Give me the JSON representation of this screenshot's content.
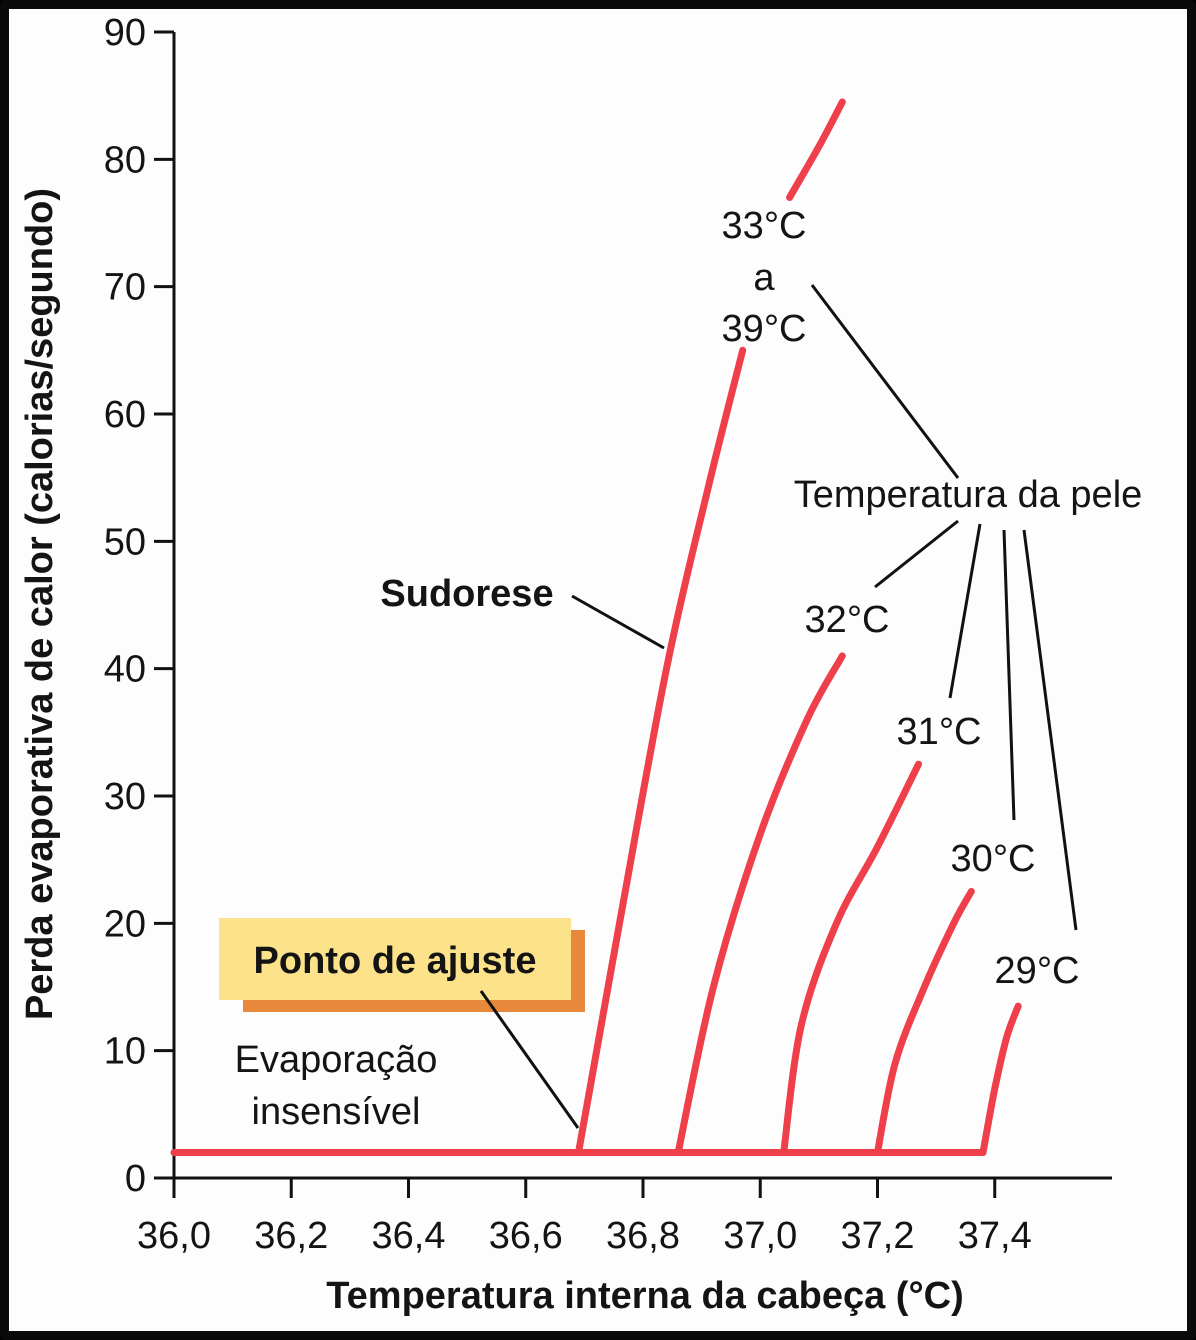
{
  "chart_data": {
    "type": "line",
    "xlabel": "Temperatura interna da cabeça (°C)",
    "ylabel": "Perda evaporativa de calor (calorias/segundo)",
    "xlim": [
      36.0,
      37.6
    ],
    "ylim": [
      0,
      90
    ],
    "x_ticks": [
      36.0,
      36.2,
      36.4,
      36.6,
      36.8,
      37.0,
      37.2,
      37.4
    ],
    "x_tick_labels": [
      "36,0",
      "36,2",
      "36,4",
      "36,6",
      "36,8",
      "37,0",
      "37,2",
      "37,4"
    ],
    "y_ticks": [
      0,
      10,
      20,
      30,
      40,
      50,
      60,
      70,
      80,
      90
    ],
    "y_tick_labels": [
      "0",
      "10",
      "20",
      "30",
      "40",
      "50",
      "60",
      "70",
      "80",
      "90"
    ],
    "grid": false,
    "legend": "none",
    "baseline": {
      "x": [
        36.0,
        37.38
      ],
      "y": [
        2,
        2
      ]
    },
    "series": [
      {
        "name": "33°C a 39°C",
        "x": [
          36.69,
          36.76,
          36.84,
          36.91,
          36.97
        ],
        "y": [
          2,
          20,
          40,
          54,
          65
        ]
      },
      {
        "name": "33°C a 39°C (cont.)",
        "x": [
          37.05,
          37.1,
          37.14
        ],
        "y": [
          77,
          81,
          84.5
        ]
      },
      {
        "name": "32°C",
        "x": [
          36.86,
          36.92,
          37.0,
          37.08,
          37.14
        ],
        "y": [
          2,
          15,
          27,
          36,
          41
        ]
      },
      {
        "name": "31°C",
        "x": [
          37.04,
          37.07,
          37.13,
          37.2,
          37.27
        ],
        "y": [
          2,
          12,
          20,
          26,
          32.5
        ]
      },
      {
        "name": "30°C",
        "x": [
          37.2,
          37.23,
          37.28,
          37.33,
          37.36
        ],
        "y": [
          2,
          9,
          15,
          20,
          22.5
        ]
      },
      {
        "name": "29°C",
        "x": [
          37.38,
          37.4,
          37.42,
          37.44
        ],
        "y": [
          2,
          7,
          11,
          13.5
        ]
      }
    ],
    "annotations": {
      "set_point": "Ponto de ajuste",
      "insensible_line1": "Evaporação",
      "insensible_line2": "insensível",
      "sweating": "Sudorese",
      "skin_temp": "Temperatura da pele",
      "range_top": "33°C",
      "range_mid": "a",
      "range_bottom": "39°C",
      "t32": "32°C",
      "t31": "31°C",
      "t30": "30°C",
      "t29": "29°C"
    },
    "colors": {
      "curve": "#ee3f4b",
      "set_point_box": "#fce28a",
      "set_point_shadow": "#e8883a"
    }
  }
}
